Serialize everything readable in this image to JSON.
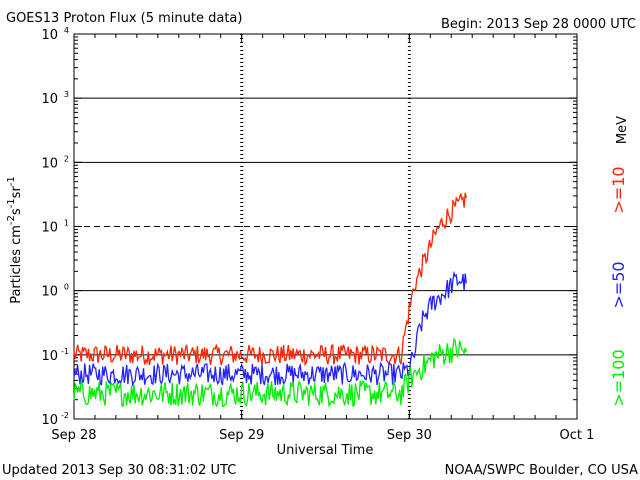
{
  "chart_data": {
    "type": "line",
    "title": "GOES13 Proton Flux (5 minute data)",
    "begin": "Begin: 2013 Sep 28 0000 UTC",
    "ylabel_base": "Particles cm",
    "ylabel_sup1": "-2",
    "ylabel_mid1": "s",
    "ylabel_sup2": "-1",
    "ylabel_mid2": "sr",
    "ylabel_sup3": "-1",
    "xlabel": "Universal Time",
    "unit_label": "MeV",
    "y_scale": "log",
    "ylim": [
      0.01,
      10000
    ],
    "xlim": [
      0,
      3
    ],
    "y_ticks": [
      {
        "base": "10",
        "exp": "-2",
        "value": 0.01
      },
      {
        "base": "10",
        "exp": "-1",
        "value": 0.1
      },
      {
        "base": "10",
        "exp": "0",
        "value": 1
      },
      {
        "base": "10",
        "exp": "1",
        "value": 10
      },
      {
        "base": "10",
        "exp": "2",
        "value": 100
      },
      {
        "base": "10",
        "exp": "3",
        "value": 1000
      },
      {
        "base": "10",
        "exp": "4",
        "value": 10000
      }
    ],
    "x_ticks": [
      {
        "label": "Sep 28",
        "value": 0
      },
      {
        "label": "Sep 29",
        "value": 1
      },
      {
        "label": "Sep 30",
        "value": 2
      },
      {
        "label": "Oct 1",
        "value": 3
      }
    ],
    "threshold_lines": [
      {
        "value": 10,
        "style": "dashed"
      },
      {
        "value": 0.1,
        "style": "solid"
      },
      {
        "value": 1,
        "style": "solid"
      },
      {
        "value": 100,
        "style": "solid"
      },
      {
        "value": 1000,
        "style": "solid"
      }
    ],
    "grid": true,
    "legend_position": "right",
    "series": [
      {
        "name": ">=10",
        "color": "#ff2200",
        "x": [
          0,
          0.2,
          0.4,
          0.6,
          0.8,
          1.0,
          1.2,
          1.4,
          1.6,
          1.8,
          1.95,
          2.0,
          2.03,
          2.08,
          2.12,
          2.15,
          2.18,
          2.22,
          2.26,
          2.3,
          2.34
        ],
        "y": [
          0.1,
          0.1,
          0.1,
          0.1,
          0.1,
          0.1,
          0.1,
          0.1,
          0.1,
          0.1,
          0.1,
          0.5,
          1.2,
          2.5,
          4.5,
          7,
          10,
          14,
          18,
          22,
          28
        ]
      },
      {
        "name": ">=50",
        "color": "#2222ff",
        "x": [
          0,
          0.2,
          0.4,
          0.6,
          0.8,
          1.0,
          1.2,
          1.4,
          1.6,
          1.8,
          1.95,
          2.0,
          2.03,
          2.06,
          2.1,
          2.14,
          2.18,
          2.22,
          2.26,
          2.3,
          2.34
        ],
        "y": [
          0.05,
          0.05,
          0.05,
          0.05,
          0.05,
          0.05,
          0.05,
          0.05,
          0.05,
          0.05,
          0.05,
          0.06,
          0.1,
          0.25,
          0.45,
          0.65,
          0.8,
          1.0,
          1.3,
          1.5,
          1.3
        ]
      },
      {
        "name": ">=100",
        "color": "#00ee00",
        "x": [
          0,
          0.2,
          0.4,
          0.6,
          0.8,
          1.0,
          1.2,
          1.4,
          1.6,
          1.8,
          1.95,
          2.0,
          2.03,
          2.06,
          2.1,
          2.14,
          2.18,
          2.22,
          2.26,
          2.3,
          2.34
        ],
        "y": [
          0.025,
          0.025,
          0.025,
          0.025,
          0.025,
          0.025,
          0.025,
          0.025,
          0.025,
          0.025,
          0.025,
          0.04,
          0.05,
          0.06,
          0.07,
          0.09,
          0.1,
          0.11,
          0.12,
          0.12,
          0.11
        ]
      }
    ]
  },
  "footer": {
    "updated": "Updated 2013 Sep 30 08:31:02 UTC",
    "source": "NOAA/SWPC Boulder, CO USA"
  }
}
